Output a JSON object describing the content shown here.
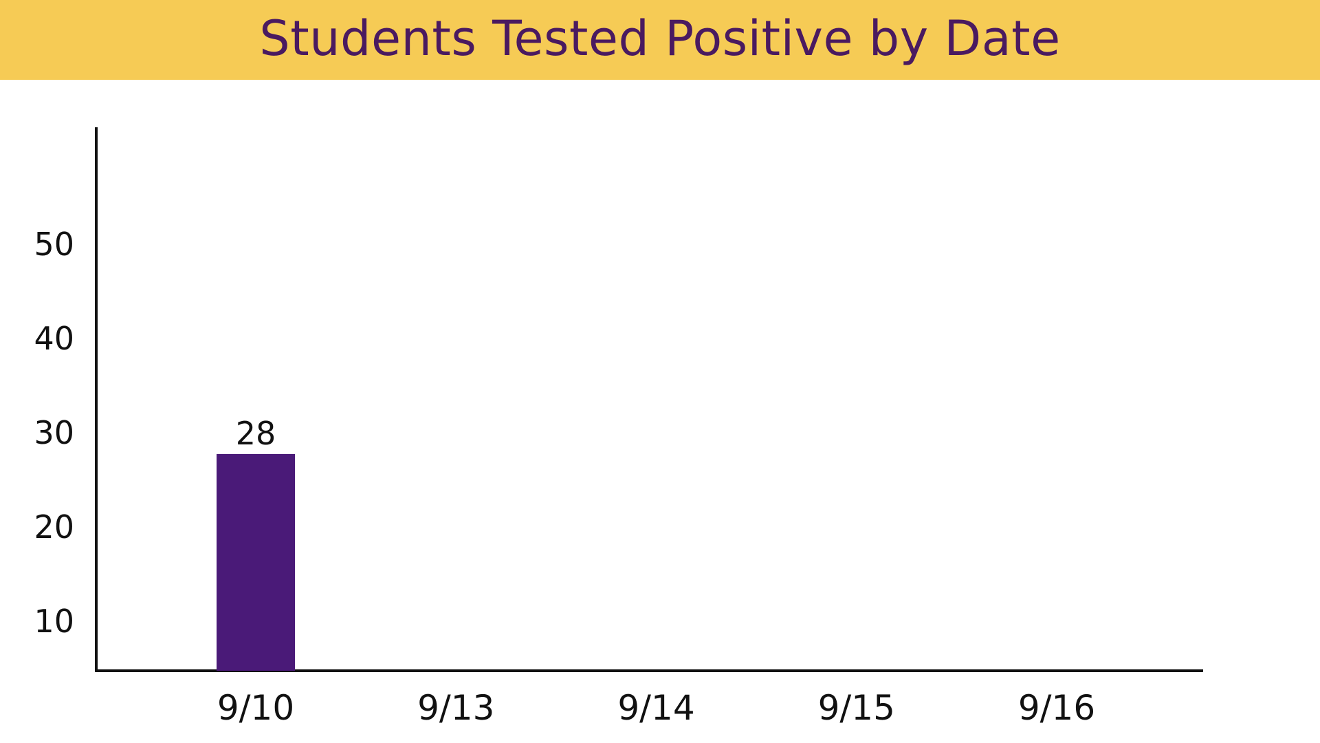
{
  "header": {
    "title": "Students Tested Positive by Date"
  },
  "colors": {
    "banner": "#f6cb55",
    "title": "#4a1a60",
    "bar": "#4a1a78",
    "axis": "#111111"
  },
  "chart_data": {
    "type": "bar",
    "title": "Students Tested Positive by Date",
    "xlabel": "",
    "ylabel": "",
    "categories": [
      "9/10",
      "9/13",
      "9/14",
      "9/15",
      "9/16"
    ],
    "values": [
      28,
      null,
      null,
      null,
      null
    ],
    "data_labels": [
      "28",
      "",
      "",
      "",
      ""
    ],
    "yticks": [
      10,
      20,
      30,
      40,
      50
    ],
    "ylim": [
      5,
      58
    ],
    "grid": false,
    "legend": "none"
  }
}
